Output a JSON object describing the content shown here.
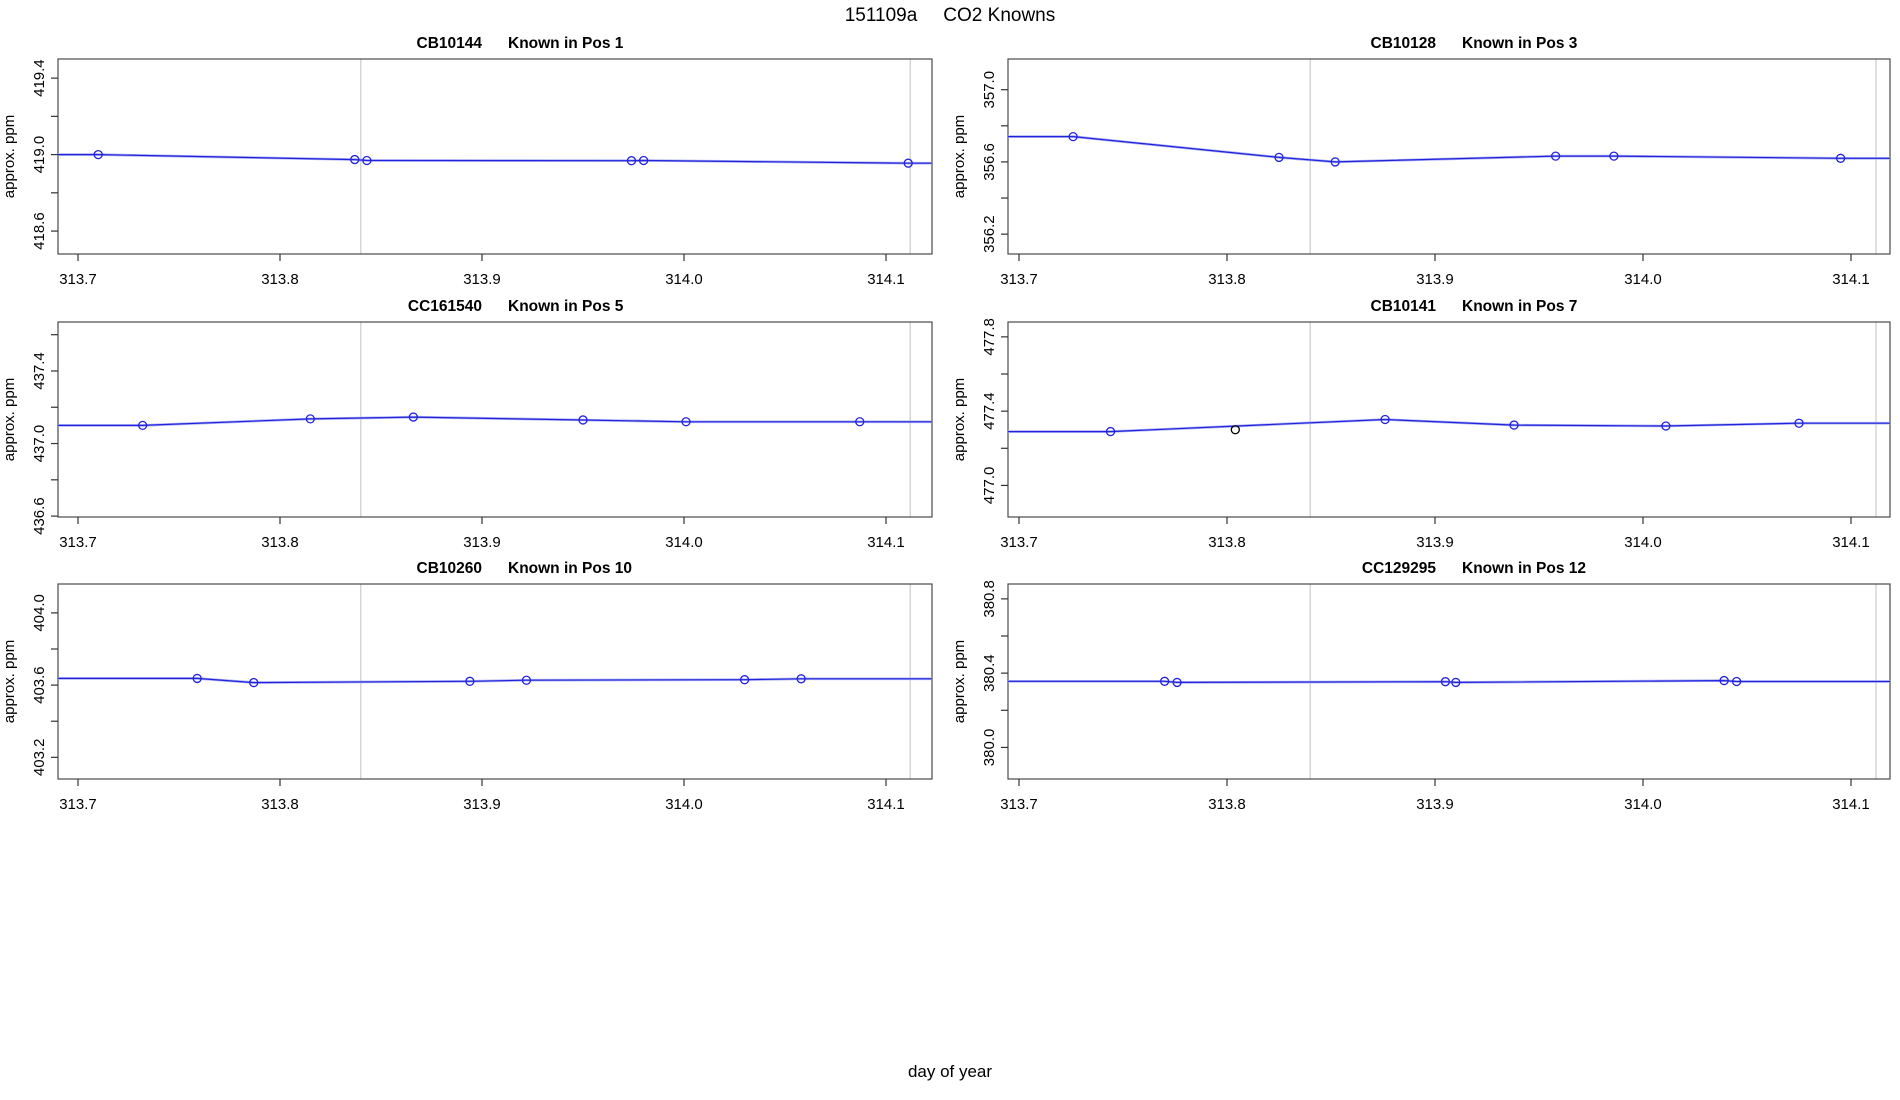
{
  "figure": {
    "title_run": "151109a",
    "title_text": "CO2 Knowns",
    "xlabel": "day of year"
  },
  "colors": {
    "line": "#2222dd",
    "line_halo": "#aab0f2",
    "point": "#2222dd",
    "outlier_point": "#000000",
    "ref_line": "#cccccc",
    "box": "#4a4a4a",
    "tick": "#333333",
    "text": "#000000"
  },
  "axis": {
    "ylabel": "approx. ppm",
    "x_ticks": [
      313.7,
      313.8,
      313.9,
      314.0,
      314.1
    ],
    "x_tick_labels": [
      "313.7",
      "313.8",
      "313.9",
      "314.0",
      "314.1"
    ]
  },
  "ref_lines_x": [
    313.84,
    314.112
  ],
  "chart_data": [
    {
      "type": "line",
      "id": "cb10144-pos1",
      "sample": "CB10144",
      "position_label": "Known in Pos 1",
      "x": [
        313.71,
        313.837,
        313.843,
        313.974,
        313.98,
        314.111
      ],
      "y": [
        419.0,
        418.974,
        418.969,
        418.968,
        418.969,
        418.955
      ],
      "outlier_index": null,
      "ylim": [
        418.48,
        419.5
      ],
      "y_ticks": [
        418.6,
        418.8,
        419.0,
        419.2,
        419.4
      ],
      "y_tick_labels": [
        "418.6",
        "",
        "419.0",
        "",
        "419.4"
      ]
    },
    {
      "type": "line",
      "id": "cb10128-pos3",
      "sample": "CB10128",
      "position_label": "Known in Pos 3",
      "x": [
        313.726,
        313.825,
        313.852,
        313.958,
        313.986,
        314.095
      ],
      "y": [
        356.74,
        356.625,
        356.6,
        356.632,
        356.632,
        356.62
      ],
      "outlier_index": null,
      "ylim": [
        356.09,
        357.17
      ],
      "y_ticks": [
        356.2,
        356.4,
        356.6,
        356.8,
        357.0
      ],
      "y_tick_labels": [
        "356.2",
        "",
        "356.6",
        "",
        "357.0"
      ]
    },
    {
      "type": "line",
      "id": "cc161540-pos5",
      "sample": "CC161540",
      "position_label": "Known in Pos 5",
      "x": [
        313.732,
        313.815,
        313.866,
        313.95,
        314.001,
        314.087
      ],
      "y": [
        437.1,
        437.136,
        437.146,
        437.13,
        437.12,
        437.12
      ],
      "outlier_index": null,
      "ylim": [
        436.595,
        437.67
      ],
      "y_ticks": [
        436.6,
        436.8,
        437.0,
        437.2,
        437.4,
        437.6
      ],
      "y_tick_labels": [
        "436.6",
        "",
        "437.0",
        "",
        "437.4",
        ""
      ]
    },
    {
      "type": "line",
      "id": "cb10141-pos7",
      "sample": "CB10141",
      "position_label": "Known in Pos 7",
      "x": [
        313.744,
        313.804,
        313.876,
        313.938,
        314.011,
        314.075
      ],
      "y": [
        477.29,
        477.3,
        477.355,
        477.325,
        477.32,
        477.335
      ],
      "outlier_index": 1,
      "ylim": [
        476.83,
        477.88
      ],
      "y_ticks": [
        477.0,
        477.2,
        477.4,
        477.6,
        477.8
      ],
      "y_tick_labels": [
        "477.0",
        "",
        "477.4",
        "",
        "477.8"
      ]
    },
    {
      "type": "line",
      "id": "cb10260-pos10",
      "sample": "CB10260",
      "position_label": "Known in Pos 10",
      "x": [
        313.759,
        313.787,
        313.894,
        313.922,
        314.03,
        314.058
      ],
      "y": [
        403.637,
        403.614,
        403.621,
        403.627,
        403.63,
        403.635
      ],
      "outlier_index": null,
      "ylim": [
        403.08,
        404.16
      ],
      "y_ticks": [
        403.2,
        403.4,
        403.6,
        403.8,
        404.0
      ],
      "y_tick_labels": [
        "403.2",
        "",
        "403.6",
        "",
        "404.0"
      ]
    },
    {
      "type": "line",
      "id": "cc129295-pos12",
      "sample": "CC129295",
      "position_label": "Known in Pos 12",
      "x": [
        313.77,
        313.776,
        313.905,
        313.91,
        314.039,
        314.045
      ],
      "y": [
        380.356,
        380.35,
        380.354,
        380.35,
        380.36,
        380.355
      ],
      "outlier_index": null,
      "ylim": [
        379.83,
        380.88
      ],
      "y_ticks": [
        380.0,
        380.2,
        380.4,
        380.6,
        380.8
      ],
      "y_tick_labels": [
        "380.0",
        "",
        "380.4",
        "",
        "380.8"
      ]
    }
  ]
}
